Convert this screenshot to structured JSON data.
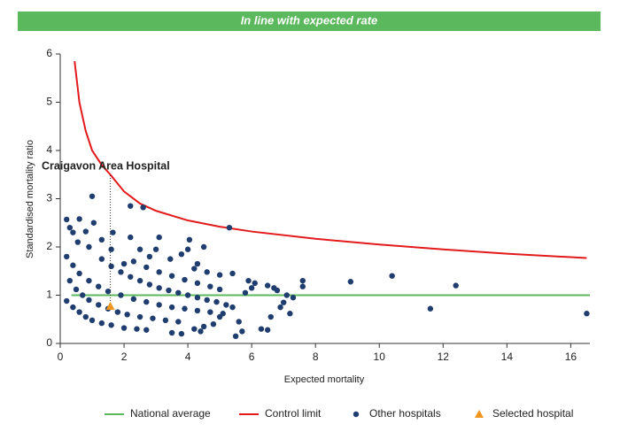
{
  "banner": "In line with expected rate",
  "chart_data": {
    "type": "scatter",
    "xlabel": "Expected mortality",
    "ylabel": "Standardised mortality ratio",
    "annotation": "Craigavon Area Hospital",
    "xlim": [
      0,
      16.6
    ],
    "ylim": [
      0,
      6
    ],
    "xticks": [
      0,
      2,
      4,
      6,
      8,
      10,
      12,
      14,
      16
    ],
    "yticks": [
      0,
      1,
      2,
      3,
      4,
      5,
      6
    ],
    "series": [
      {
        "name": "National average",
        "type": "line",
        "color": "#5cb85c",
        "x": [
          0.35,
          16.6
        ],
        "values": [
          1,
          1
        ]
      },
      {
        "name": "Control limit",
        "type": "line",
        "color": "#e31a1c",
        "x": [
          0.45,
          0.6,
          0.8,
          1.0,
          1.3,
          1.57,
          2.0,
          2.5,
          3.0,
          4.0,
          5.0,
          6.0,
          8.0,
          10.0,
          12.0,
          14.0,
          16.5
        ],
        "values": [
          5.85,
          5.0,
          4.4,
          4.0,
          3.7,
          3.5,
          3.15,
          2.9,
          2.75,
          2.55,
          2.42,
          2.32,
          2.17,
          2.05,
          1.95,
          1.86,
          1.77
        ]
      },
      {
        "name": "Other hospitals",
        "type": "scatter",
        "marker": "circle",
        "color": "#1f3d6e",
        "x": [
          0.2,
          0.3,
          0.4,
          0.6,
          0.8,
          1.0,
          1.05,
          1.3,
          1.65,
          0.55,
          0.9,
          2.2,
          2.6,
          2.2,
          2.5,
          3.1,
          3.0,
          3.45,
          4.05,
          4.0,
          4.5,
          5.3,
          1.6,
          2.0,
          2.8,
          3.8,
          4.3,
          0.2,
          0.4,
          0.6,
          0.8,
          1.0,
          1.3,
          1.6,
          2.0,
          2.4,
          2.7,
          0.3,
          0.5,
          0.7,
          0.9,
          1.2,
          1.5,
          1.8,
          2.1,
          2.5,
          2.9,
          3.3,
          3.7,
          0.2,
          0.4,
          0.6,
          0.9,
          1.2,
          1.5,
          1.9,
          2.3,
          2.7,
          3.1,
          3.5,
          3.9,
          4.3,
          4.7,
          5.1,
          1.3,
          1.6,
          1.9,
          2.2,
          2.5,
          2.8,
          3.1,
          3.4,
          3.7,
          4.0,
          4.3,
          4.6,
          4.9,
          2.3,
          2.7,
          3.1,
          3.5,
          3.9,
          4.3,
          4.7,
          5.0,
          4.2,
          4.6,
          5.0,
          5.4,
          5.2,
          5.4,
          5.6,
          5.5,
          5.7,
          5.9,
          5.8,
          6.0,
          6.1,
          6.3,
          6.5,
          6.5,
          6.6,
          6.7,
          6.8,
          6.9,
          7.0,
          7.1,
          7.2,
          7.3,
          7.6,
          7.6,
          9.1,
          10.4,
          11.6,
          12.4,
          16.5,
          3.5,
          3.8,
          4.4,
          4.5,
          4.8,
          5.0,
          4.2
        ],
        "values": [
          2.57,
          2.4,
          2.3,
          2.58,
          2.32,
          3.05,
          2.5,
          2.15,
          2.3,
          2.1,
          2.0,
          2.85,
          2.82,
          2.2,
          1.95,
          2.2,
          1.95,
          1.75,
          2.15,
          1.95,
          2.0,
          2.4,
          1.95,
          1.65,
          1.8,
          1.85,
          1.65,
          0.88,
          0.75,
          0.65,
          0.55,
          0.48,
          0.42,
          0.38,
          0.32,
          0.3,
          0.28,
          1.3,
          1.12,
          1.0,
          0.9,
          0.8,
          0.72,
          0.65,
          0.6,
          0.55,
          0.52,
          0.48,
          0.45,
          1.8,
          1.62,
          1.45,
          1.3,
          1.18,
          1.08,
          1.0,
          0.92,
          0.86,
          0.8,
          0.75,
          0.72,
          0.68,
          0.65,
          0.62,
          1.75,
          1.6,
          1.48,
          1.38,
          1.3,
          1.22,
          1.15,
          1.1,
          1.05,
          1.0,
          0.95,
          0.9,
          0.86,
          1.7,
          1.58,
          1.48,
          1.4,
          1.32,
          1.25,
          1.18,
          1.12,
          1.55,
          1.48,
          1.42,
          1.45,
          0.8,
          0.75,
          0.45,
          0.15,
          0.25,
          1.3,
          1.05,
          1.15,
          1.25,
          0.3,
          0.28,
          1.2,
          0.55,
          1.15,
          1.1,
          0.75,
          0.85,
          1.0,
          0.62,
          0.95,
          1.3,
          1.18,
          1.28,
          1.4,
          0.72,
          1.2,
          0.62,
          0.22,
          0.2,
          0.25,
          0.35,
          0.4,
          0.55,
          0.3
        ]
      },
      {
        "name": "Selected hospital",
        "type": "scatter",
        "marker": "triangle",
        "color": "#f0961e",
        "x": [
          1.57
        ],
        "values": [
          0.77
        ]
      }
    ]
  }
}
